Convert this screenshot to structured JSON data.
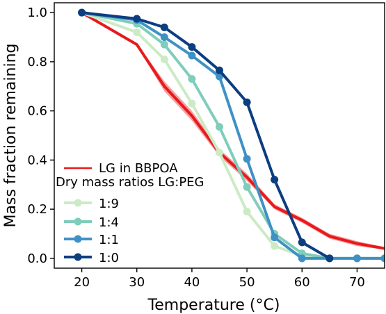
{
  "chart_data": {
    "type": "line",
    "xlabel": "Temperature (°C)",
    "ylabel": "Mass fraction remaining",
    "xlim": [
      15,
      75
    ],
    "ylim": [
      -0.04,
      1.04
    ],
    "x_ticks": [
      20,
      30,
      40,
      50,
      60,
      70
    ],
    "y_ticks": [
      0.0,
      0.2,
      0.4,
      0.6,
      0.8,
      1.0
    ],
    "x_tick_labels": [
      "20",
      "30",
      "40",
      "50",
      "60",
      "70"
    ],
    "y_tick_labels": [
      "0.0",
      "0.2",
      "0.4",
      "0.6",
      "0.8",
      "1.0"
    ],
    "grid": false,
    "legend_position": "lower-left",
    "reference_series": {
      "name": "LG in BBPOA",
      "color": "#e8191c",
      "band_color": "#f08080",
      "x": [
        20,
        30,
        35,
        40,
        45,
        50,
        55,
        60,
        65,
        70,
        75
      ],
      "y": [
        1.0,
        0.87,
        0.7,
        0.58,
        0.43,
        0.33,
        0.21,
        0.155,
        0.09,
        0.06,
        0.04
      ],
      "band_lower": [
        1.0,
        0.865,
        0.68,
        0.56,
        0.415,
        0.315,
        0.2,
        0.145,
        0.08,
        0.05,
        0.035
      ],
      "band_upper": [
        1.0,
        0.875,
        0.72,
        0.6,
        0.445,
        0.345,
        0.22,
        0.165,
        0.1,
        0.07,
        0.045
      ]
    },
    "legend_group_title": "Dry mass ratios LG:PEG",
    "series": [
      {
        "name": "1:9",
        "color": "#ccebc5",
        "x": [
          20,
          30,
          35,
          40,
          45,
          50,
          55,
          60,
          65,
          70,
          75
        ],
        "y": [
          1.0,
          0.92,
          0.81,
          0.63,
          0.43,
          0.19,
          0.05,
          0.01,
          0.0,
          0.0,
          0.0
        ]
      },
      {
        "name": "1:4",
        "color": "#7fcdbb",
        "x": [
          20,
          30,
          35,
          40,
          45,
          50,
          55,
          60,
          65,
          70,
          75
        ],
        "y": [
          1.0,
          0.955,
          0.87,
          0.73,
          0.535,
          0.29,
          0.1,
          0.02,
          0.0,
          0.0,
          0.0
        ]
      },
      {
        "name": "1:1",
        "color": "#3f91c4",
        "x": [
          20,
          30,
          35,
          40,
          45,
          50,
          55,
          60,
          65,
          70,
          75
        ],
        "y": [
          1.0,
          0.97,
          0.9,
          0.825,
          0.74,
          0.405,
          0.085,
          0.0,
          0.0,
          0.0,
          0.0
        ]
      },
      {
        "name": "1:0",
        "color": "#0c3e80",
        "x": [
          20,
          30,
          35,
          40,
          45,
          50,
          55,
          60,
          65
        ],
        "y": [
          1.0,
          0.975,
          0.94,
          0.86,
          0.765,
          0.635,
          0.32,
          0.065,
          0.0
        ]
      }
    ]
  }
}
